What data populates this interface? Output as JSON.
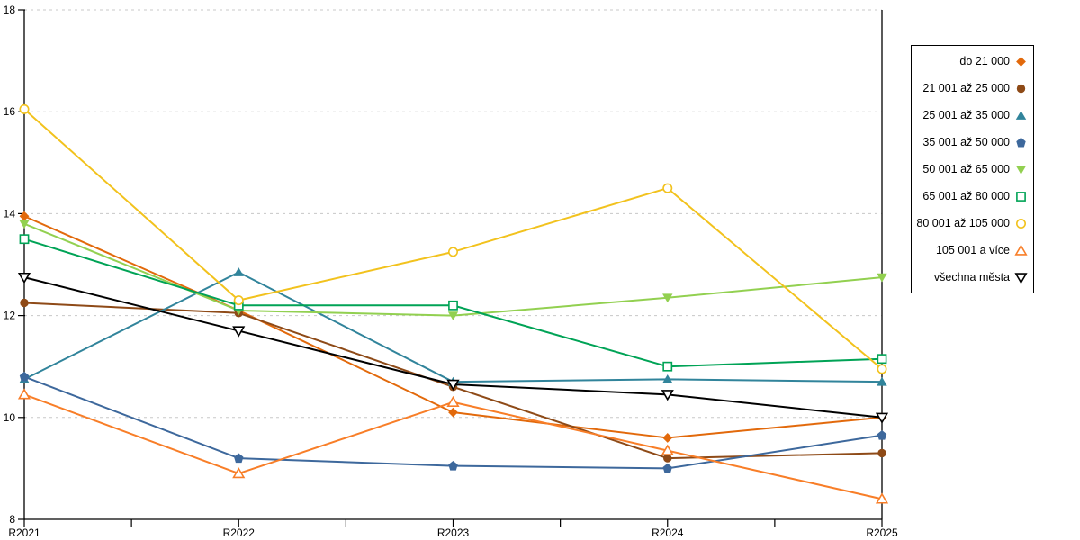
{
  "chart_data": {
    "type": "line",
    "title": "",
    "xlabel": "",
    "ylabel": "",
    "categories": [
      "R2021",
      "R2022",
      "R2023",
      "R2024",
      "R2025"
    ],
    "ylim": [
      8,
      18
    ],
    "yticks": [
      8,
      10,
      12,
      14,
      16,
      18
    ],
    "grid": "horizontal-dashed",
    "grid_color": "#c8c8c8",
    "axis_color": "#000000",
    "legend_position": "right-outside",
    "legend_border_color": "#000000",
    "series": [
      {
        "name": "do 21 000",
        "marker": "diamond",
        "open": false,
        "color": "#e2690b",
        "values": [
          13.95,
          12.1,
          10.1,
          9.6,
          10.0
        ]
      },
      {
        "name": "21 001 až 25 000",
        "marker": "circle",
        "open": false,
        "color": "#8e4a17",
        "values": [
          12.25,
          12.05,
          10.6,
          9.2,
          9.3
        ]
      },
      {
        "name": "25 001 až 35 000",
        "marker": "triangle-up",
        "open": false,
        "color": "#31849b",
        "values": [
          10.75,
          12.85,
          10.7,
          10.75,
          10.7
        ]
      },
      {
        "name": "35 001 až 50 000",
        "marker": "pentagon",
        "open": false,
        "color": "#3d689c",
        "values": [
          10.8,
          9.2,
          9.05,
          9.0,
          9.65
        ]
      },
      {
        "name": "50 001 až 65 000",
        "marker": "triangle-down",
        "open": false,
        "color": "#92d050",
        "values": [
          13.8,
          12.1,
          12.0,
          12.35,
          12.75
        ]
      },
      {
        "name": "65 001 až 80 000",
        "marker": "square",
        "open": true,
        "color": "#00a356",
        "values": [
          13.5,
          12.2,
          12.2,
          11.0,
          11.15
        ]
      },
      {
        "name": "80 001 až 105 000",
        "marker": "circle",
        "open": true,
        "color": "#f2c21d",
        "values": [
          16.05,
          12.3,
          13.25,
          14.5,
          10.95
        ]
      },
      {
        "name": "105 001 a více",
        "marker": "triangle-up",
        "open": true,
        "color": "#f87e28",
        "values": [
          10.45,
          8.9,
          10.3,
          9.35,
          8.4
        ]
      },
      {
        "name": "všechna města",
        "marker": "triangle-down",
        "open": true,
        "color": "#000000",
        "values": [
          12.75,
          11.7,
          10.65,
          10.45,
          10.0
        ]
      }
    ]
  }
}
